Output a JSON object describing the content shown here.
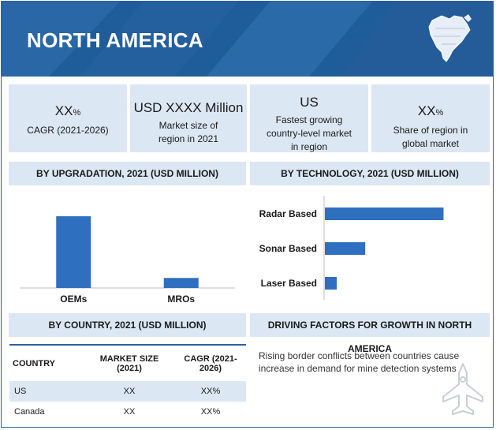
{
  "header": {
    "title": "NORTH AMERICA",
    "map_icon": "north-america-map-icon"
  },
  "kpis": [
    {
      "big": "XX",
      "big_suffix": "%",
      "label": "CAGR (2021-2026)"
    },
    {
      "big": "USD XXXX Million",
      "big_suffix": "",
      "label": "Market size of region in 2021"
    },
    {
      "big": "US",
      "big_suffix": "",
      "label": "Fastest growing country-level market in region"
    },
    {
      "big": "XX",
      "big_suffix": "%",
      "label": "Share of region in global market"
    }
  ],
  "sections": {
    "upgradation": "BY UPGRADATION, 2021 (USD MILLION)",
    "technology": "BY TECHNOLOGY, 2021 (USD MILLION)",
    "country": "BY COUNTRY, 2021 (USD MILLION)",
    "drivers": "DRIVING FACTORS FOR GROWTH IN NORTH AMERICA"
  },
  "chart_data": [
    {
      "type": "bar",
      "title": "BY UPGRADATION, 2021 (USD MILLION)",
      "orientation": "vertical",
      "categories": [
        "OEMs",
        "MROs"
      ],
      "values": [
        100,
        14
      ],
      "ylim": [
        0,
        110
      ],
      "grid": false,
      "color": "#2f6fbf"
    },
    {
      "type": "bar",
      "title": "BY TECHNOLOGY, 2021 (USD MILLION)",
      "orientation": "horizontal",
      "categories": [
        "Radar Based",
        "Sonar Based",
        "Laser Based"
      ],
      "values": [
        100,
        34,
        10
      ],
      "xlim": [
        0,
        105
      ],
      "grid": false,
      "color": "#2f6fbf"
    }
  ],
  "country_table": {
    "headers": [
      "COUNTRY",
      "MARKET SIZE (2021)",
      "CAGR (2021-2026)"
    ],
    "rows": [
      [
        "US",
        "XX",
        "XX%"
      ],
      [
        "Canada",
        "XX",
        "XX%"
      ]
    ]
  },
  "drivers": {
    "text": "Rising border conflicts between countries cause increase in demand for mine detection systems",
    "icon": "fighter-jet-icon"
  },
  "colors": {
    "header": "#1f5c9a",
    "panel": "#dbe7f3",
    "bar": "#2f6fbf",
    "row_highlight": "#dbe7f3"
  }
}
